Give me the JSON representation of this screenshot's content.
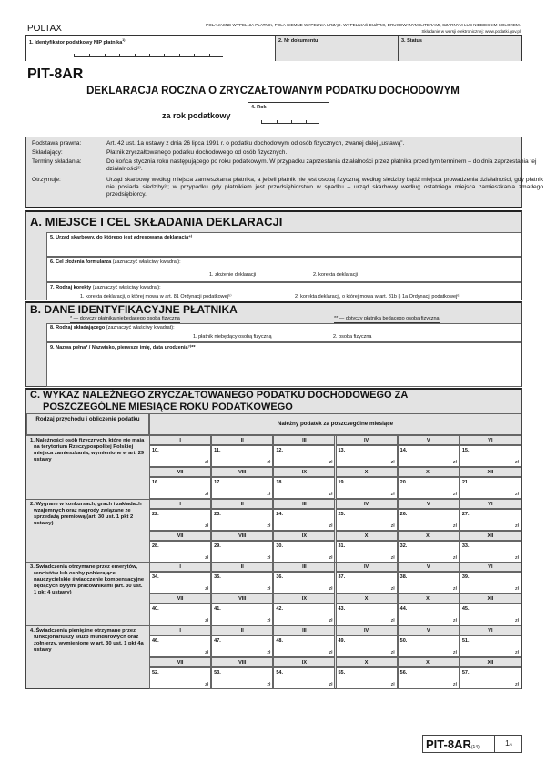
{
  "header": {
    "brand": "POLTAX",
    "instructions": "POLA JASNE WYPEŁNIA PŁATNIK, POLA CIEMNE WYPEŁNIA URZĄD. WYPEŁNIAĆ DUŻYMI, DRUKOWANYMI LITERAMI, CZARNYM LUB NIEBIESKIM KOLOREM.",
    "electronic": "Składanie w wersji elektronicznej: www.podatki.gov.pl"
  },
  "top_fields": {
    "nip": "1. Identyfikator podatkowy NIP płatnika",
    "nip_sup": "1)",
    "doc": "2. Nr dokumentu",
    "status": "3. Status"
  },
  "form_code": "PIT-8AR",
  "title": "DEKLARACJA ROCZNA O ZRYCZAŁTOWANYM PODATKU DOCHODOWYM",
  "year": {
    "prefix": "za rok podatkowy",
    "label": "4. Rok"
  },
  "info": [
    {
      "k": "Podstawa prawna:",
      "v": "Art. 42 ust. 1a ustawy z dnia 26 lipca 1991 r. o podatku dochodowym od osób fizycznych, zwanej dalej „ustawą”."
    },
    {
      "k": "Składający:",
      "v": "Płatnik zryczałtowanego podatku dochodowego od osób fizycznych."
    },
    {
      "k": "Terminy składania:",
      "v": "Do końca stycznia roku następującego po roku podatkowym. W przypadku zaprzestania działalności przez płatnika przed tym terminem – do dnia zaprzestania tej działalności²⁾."
    },
    {
      "k": "Otrzymuje:",
      "v": "Urząd skarbowy według miejsca zamieszkania płatnika, a jeżeli płatnik nie jest osobą fizyczną, według siedziby bądź miejsca prowadzenia działalności, gdy płatnik nie posiada siedziby³⁾; w przypadku gdy płatnikiem jest przedsiębiorstwo w spadku – urząd skarbowy według ostatniego miejsca zamieszkania zmarłego przedsiębiorcy."
    }
  ],
  "section_a": {
    "title": "A. MIEJSCE I CEL SKŁADANIA DEKLARACJI",
    "f5": "5. Urząd skarbowy, do którego jest adresowana deklaracja⁴⁾",
    "f6": "6. Cel złożenia formularza",
    "f6_hint": "(zaznaczyć właściwy kwadrat):",
    "f6_opt1": "1. złożenie deklaracji",
    "f6_opt2": "2. korekta deklaracji",
    "f7": "7. Rodzaj korekty",
    "f7_hint": "(zaznaczyć właściwy kwadrat):",
    "f7_opt1": "1. korekta deklaracji, o której mowa w art. 81 Ordynacji podatkowej⁵⁾",
    "f7_opt2": "2. korekta deklaracji, o której mowa w art. 81b § 1a Ordynacji podatkowej⁶⁾"
  },
  "section_b": {
    "title": "B. DANE IDENTYFIKACYJNE PŁATNIKA",
    "note1": "* — dotyczy płatnika niebędącego osobą fizyczną",
    "note2": "** — dotyczy płatnika będącego osobą fizyczną",
    "f8": "8. Rodzaj składającego",
    "f8_hint": "(zaznaczyć właściwy kwadrat):",
    "f8_opt1": "1. płatnik niebędący osobą fizyczną",
    "f8_opt2": "2. osoba fizyczna",
    "f9": "9. Nazwa pełna* / Nazwisko, pierwsze imię, data urodzenia⁷⁾**"
  },
  "section_c": {
    "title_line1": "C. WYKAZ NALEŻNEGO ZRYCZAŁTOWANEGO PODATKU DOCHODOWEGO ZA",
    "title_line2": "POSZCZEGÓLNE MIESIĄCE ROKU PODATKOWEGO",
    "col1": "Rodzaj przychodu i obliczenie podatku",
    "col2": "Należny podatek za poszczególne miesiące",
    "months": [
      "I",
      "II",
      "III",
      "IV",
      "V",
      "VI",
      "VII",
      "VIII",
      "IX",
      "X",
      "XI",
      "XII"
    ],
    "currency": "zł",
    "groups": [
      {
        "label": "1. Należności osób fizycznych, które nie mają na terytorium Rzeczypospolitej Polskiej miejsca zamieszkania, wymienione w art. 29 ustawy",
        "start": 10
      },
      {
        "label": "2. Wygrane w konkursach, grach i zakładach wzajemnych oraz nagrody związane ze sprzedażą premiową (art. 30 ust. 1 pkt 2 ustawy)",
        "start": 22
      },
      {
        "label": "3. Świadczenia otrzymane przez emerytów, rencistów lub osoby pobierające nauczycielskie świadczenie kompensacyjne będących byłymi pracownikami (art. 30 ust. 1 pkt 4 ustawy)",
        "start": 34
      },
      {
        "label": "4. Świadczenia pieniężne otrzymane przez funkcjonariuszy służb mundurowych oraz żołnierzy, wymienione w art. 30 ust. 1 pkt 4a ustawy",
        "start": 46
      }
    ]
  },
  "footer": {
    "code": "PIT-8AR",
    "version": "(14)",
    "page": "1",
    "pages": "/6"
  }
}
